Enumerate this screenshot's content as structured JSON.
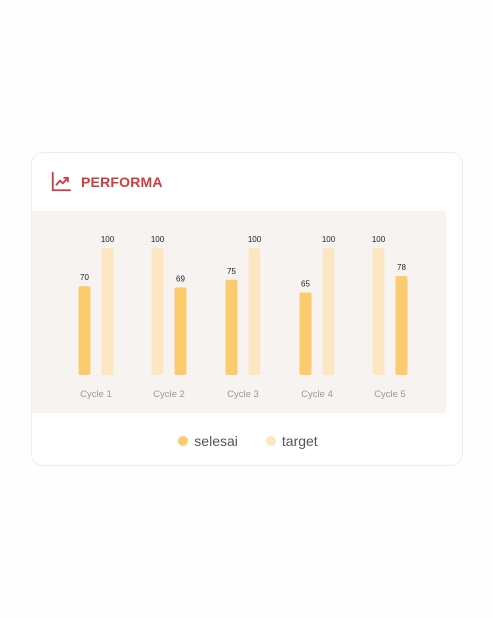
{
  "header": {
    "title": "PERFORMA",
    "icon": "trending-up-icon"
  },
  "colors": {
    "title": "#d13b3b",
    "selesai": "#fccb6e",
    "target": "#fde7c2",
    "plot_bg": "#f7f3f1"
  },
  "legend": [
    {
      "label": "selesai",
      "color": "#fccb6e"
    },
    {
      "label": "target",
      "color": "#fde7c2"
    }
  ],
  "chart_data": {
    "type": "bar",
    "categories": [
      "Cycle 1",
      "Cycle 2",
      "Cycle 3",
      "Cycle 4",
      "Cycle 5"
    ],
    "series": [
      {
        "name": "selesai",
        "values": [
          70,
          69,
          75,
          65,
          78
        ]
      },
      {
        "name": "target",
        "values": [
          100,
          100,
          100,
          100,
          100
        ]
      }
    ],
    "bar_order": [
      [
        "selesai",
        "target"
      ],
      [
        "target",
        "selesai"
      ],
      [
        "selesai",
        "target"
      ],
      [
        "selesai",
        "target"
      ],
      [
        "target",
        "selesai"
      ]
    ],
    "ylim": [
      0,
      100
    ],
    "grid": false,
    "legend_position": "bottom-center",
    "title": "",
    "xlabel": "",
    "ylabel": ""
  }
}
